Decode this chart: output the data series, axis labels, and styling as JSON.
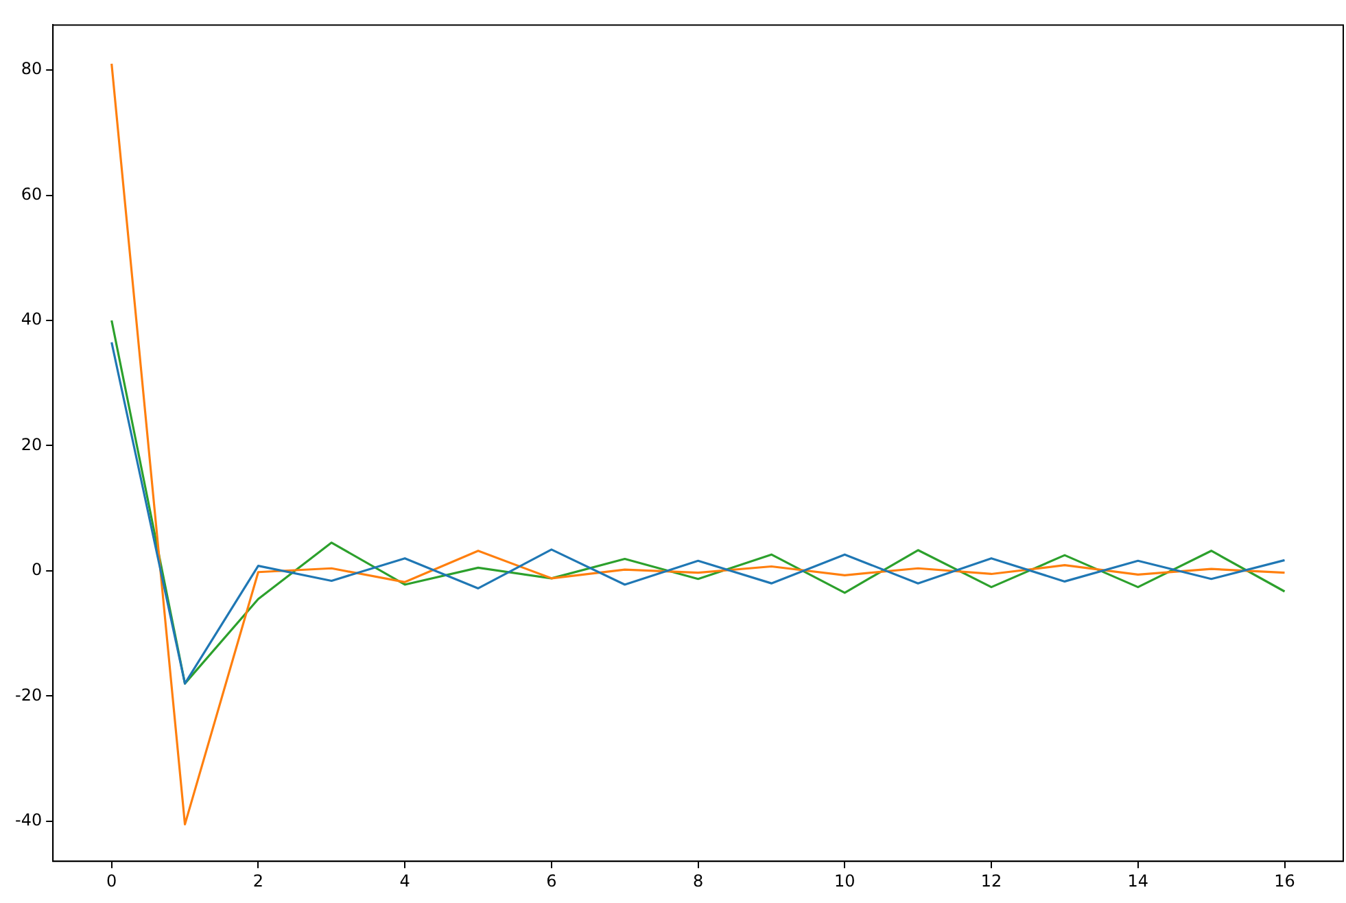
{
  "chart_data": {
    "type": "line",
    "x": [
      0,
      1,
      2,
      3,
      4,
      5,
      6,
      7,
      8,
      9,
      10,
      11,
      12,
      13,
      14,
      15,
      16
    ],
    "series": [
      {
        "color": "#1f77b4",
        "values": [
          36.5,
          -18,
          0.8,
          -1.6,
          2.0,
          -2.8,
          3.4,
          -2.2,
          1.6,
          -2.0,
          2.6,
          -2.0,
          2.0,
          -1.7,
          1.6,
          -1.3,
          1.7
        ]
      },
      {
        "color": "#ff7f0e",
        "values": [
          81,
          -40.5,
          -0.2,
          0.4,
          -1.8,
          3.2,
          -1.2,
          0.2,
          -0.3,
          0.7,
          -0.7,
          0.4,
          -0.5,
          0.9,
          -0.6,
          0.3,
          -0.3
        ]
      },
      {
        "color": "#2ca02c",
        "values": [
          40,
          -18,
          -4.5,
          4.5,
          -2.2,
          0.5,
          -1.2,
          1.9,
          -1.3,
          2.6,
          -3.5,
          3.3,
          -2.6,
          2.5,
          -2.6,
          3.2,
          -3.3
        ]
      }
    ],
    "xlim": [
      -0.8,
      16.8
    ],
    "ylim": [
      -46.4,
      87.2
    ],
    "xticks": [
      0,
      2,
      4,
      6,
      8,
      10,
      12,
      14,
      16
    ],
    "yticks": [
      -40,
      -20,
      0,
      20,
      40,
      60,
      80
    ],
    "grid": false,
    "legend": false,
    "marker": "none",
    "line_style": "solid"
  }
}
